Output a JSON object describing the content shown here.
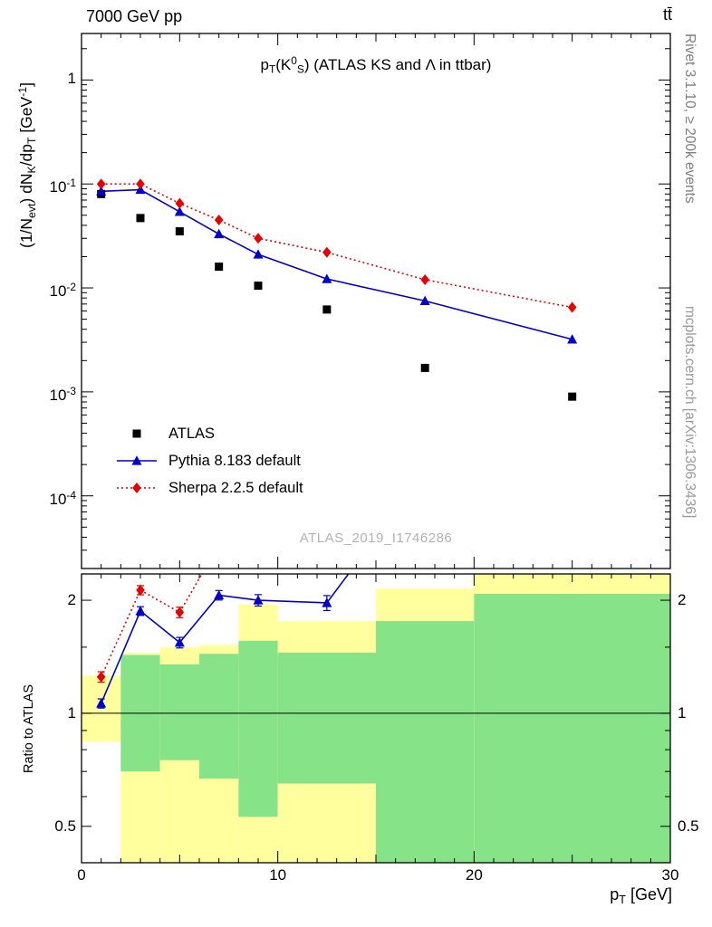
{
  "header": {
    "left": "7000 GeV pp",
    "right": "tt̄"
  },
  "side_labels": {
    "rivet": "Rivet 3.1.10, ≥ 200k events",
    "mcplots": "mcplots.cern.ch [arXiv:1306.3436]"
  },
  "chart_data": {
    "type": "line",
    "title": "p_{T}(K^{0}_{S}) (ATLAS KS and Λ in ttbar)",
    "xlabel": "p_{T} [GeV]",
    "ylabel": "(1/N_{evt}) dN_{K}/dp_{T} [GeV^{-1}]",
    "ratio_ylabel": "Ratio to ATLAS",
    "watermark": "ATLAS_2019_I1746286",
    "legend_position": "bottom-left-inside",
    "grid": false,
    "x_range": [
      0,
      30
    ],
    "y_scale": "log",
    "y_range": [
      2e-05,
      2.8
    ],
    "y_tick_exponents": [
      0,
      -1,
      -2,
      -3,
      -4
    ],
    "x_ticks": [
      0,
      10,
      20,
      30
    ],
    "x": [
      1,
      3,
      5,
      7,
      9,
      12.5,
      17.5,
      25
    ],
    "series": [
      {
        "name": "ATLAS",
        "color": "#000000",
        "marker": "square",
        "line": "none",
        "is_reference": true,
        "values": [
          0.08,
          0.047,
          0.035,
          0.016,
          0.0105,
          0.0062,
          0.0017,
          0.0009
        ]
      },
      {
        "name": "Pythia 8.183 default",
        "color": "#0000cc",
        "marker": "triangle",
        "line": "solid",
        "values": [
          0.085,
          0.088,
          0.054,
          0.033,
          0.021,
          0.0122,
          0.0075,
          0.0032
        ],
        "ratio_err": [
          0.03,
          0.05,
          0.05,
          0.06,
          0.07,
          0.09,
          0,
          0
        ]
      },
      {
        "name": "Sherpa 2.2.5 default",
        "color": "#e60000",
        "marker": "diamond",
        "line": "dotted",
        "values": [
          0.1,
          0.1,
          0.065,
          0.045,
          0.03,
          0.022,
          0.012,
          0.0065
        ],
        "ratio_err": [
          0.04,
          0.06,
          0.06,
          0,
          0,
          0,
          0,
          0
        ]
      }
    ],
    "ratio": {
      "y_scale": "log",
      "y_range": [
        0.4,
        2.35
      ],
      "ticks": [
        2,
        1,
        0.5
      ],
      "minor_ticks": [
        0.6,
        0.7,
        0.8,
        0.9,
        1.5
      ],
      "reference_line": 1,
      "band_colors": {
        "outer": "#ffff9e",
        "inner": "#87e387"
      },
      "bands": [
        {
          "x": [
            0,
            2
          ],
          "outer": [
            0.84,
            1.26
          ],
          "inner": null
        },
        {
          "x": [
            2,
            4
          ],
          "outer": [
            0.4,
            1.45
          ],
          "inner": [
            0.7,
            1.43
          ]
        },
        {
          "x": [
            4,
            6
          ],
          "outer": [
            0.4,
            1.5
          ],
          "inner": [
            0.75,
            1.35
          ]
        },
        {
          "x": [
            6,
            8
          ],
          "outer": [
            0.4,
            1.52
          ],
          "inner": [
            0.67,
            1.44
          ]
        },
        {
          "x": [
            8,
            10
          ],
          "outer": [
            0.4,
            1.95
          ],
          "inner": [
            0.53,
            1.56
          ]
        },
        {
          "x": [
            10,
            15
          ],
          "outer": [
            0.4,
            1.76
          ],
          "inner": [
            0.65,
            1.45
          ]
        },
        {
          "x": [
            15,
            20
          ],
          "outer": [
            0.4,
            2.15
          ],
          "inner": [
            0.4,
            1.76
          ]
        },
        {
          "x": [
            20,
            30
          ],
          "outer": [
            0.4,
            2.35
          ],
          "inner": [
            0.4,
            2.08
          ]
        }
      ]
    }
  }
}
